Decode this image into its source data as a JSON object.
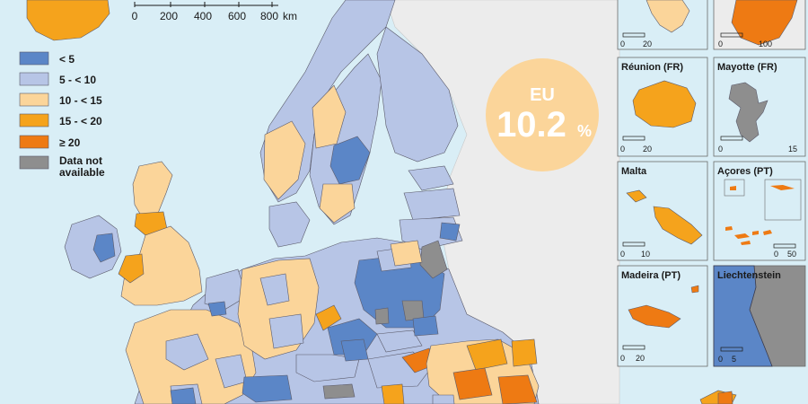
{
  "scale_bar": {
    "ticks": [
      "0",
      "200",
      "400",
      "600",
      "800"
    ],
    "unit": "km"
  },
  "legend": {
    "items": [
      {
        "label": "< 5",
        "color": "#5b86c7"
      },
      {
        "label": "5 - < 10",
        "color": "#b7c5e6"
      },
      {
        "label": "10 - < 15",
        "color": "#fbd59a"
      },
      {
        "label": "15 - < 20",
        "color": "#f5a31c"
      },
      {
        "label": "≥ 20",
        "color": "#ee7a13"
      },
      {
        "label": "Data not",
        "label2": "available",
        "color": "#8e8e8e"
      }
    ]
  },
  "eu_badge": {
    "line1": "EU",
    "value": "10.2",
    "unit": "%",
    "color": "#fbd59a"
  },
  "insets": {
    "top_left": {
      "scale": [
        "0",
        "20"
      ]
    },
    "top_right": {
      "scale": [
        "0",
        "100"
      ]
    },
    "reunion": {
      "title": "Réunion (FR)",
      "scale": [
        "0",
        "20"
      ]
    },
    "mayotte": {
      "title": "Mayotte (FR)",
      "scale": [
        "0",
        "15"
      ]
    },
    "malta": {
      "title": "Malta",
      "scale": [
        "0",
        "10"
      ]
    },
    "acores": {
      "title": "Açores (PT)",
      "scale": [
        "0",
        "50"
      ]
    },
    "madeira": {
      "title": "Madeira (PT)",
      "scale": [
        "0",
        "20"
      ]
    },
    "liechtenstein": {
      "title": "Liechtenstein",
      "scale": [
        "0",
        "5"
      ]
    }
  },
  "colors": {
    "sea": "#d9eef6",
    "non_eu_land": "#ececec",
    "border": "#5a5a6a"
  }
}
